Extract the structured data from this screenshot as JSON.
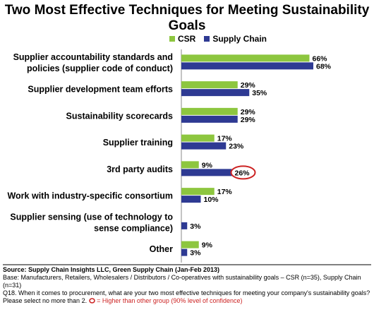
{
  "chart_data": {
    "type": "bar",
    "title": "Two Most Effective Techniques for Meeting Sustainability Goals",
    "categories": [
      "Supplier accountability standards and policies (supplier code of conduct)",
      "Supplier development team efforts",
      "Sustainability scorecards",
      "Supplier training",
      "3rd party audits",
      "Work with industry-specific consortium",
      "Supplier sensing (use of technology to sense compliance)",
      "Other"
    ],
    "series": [
      {
        "name": "CSR",
        "values": [
          66,
          29,
          29,
          17,
          9,
          17,
          null,
          9
        ],
        "color": "#8dc63f"
      },
      {
        "name": "Supply Chain",
        "values": [
          68,
          35,
          29,
          23,
          26,
          10,
          3,
          3
        ],
        "color": "#2e3a93"
      }
    ],
    "value_suffix": "%",
    "highlighted": {
      "category_index": 4,
      "series_index": 1,
      "color": "#cc2222"
    },
    "xlim": [
      0,
      70
    ],
    "legend_position": "top",
    "grid": false
  },
  "footer": {
    "source": "Source:  Supply Chain Insights LLC, Green Supply Chain (Jan-Feb 2013)",
    "base": "Base:  Manufacturers, Retailers, Wholesalers / Distributors / Co-operatives with sustainability goals – CSR (n=35), Supply Chain (n=31)",
    "question": "Q18. When it comes to procurement, what are your two most effective techniques for meeting your company's sustainability goals?  Please select no more than 2.",
    "note_symbol": "O",
    "note": "= Higher than other group  (90% level of confidence)"
  }
}
